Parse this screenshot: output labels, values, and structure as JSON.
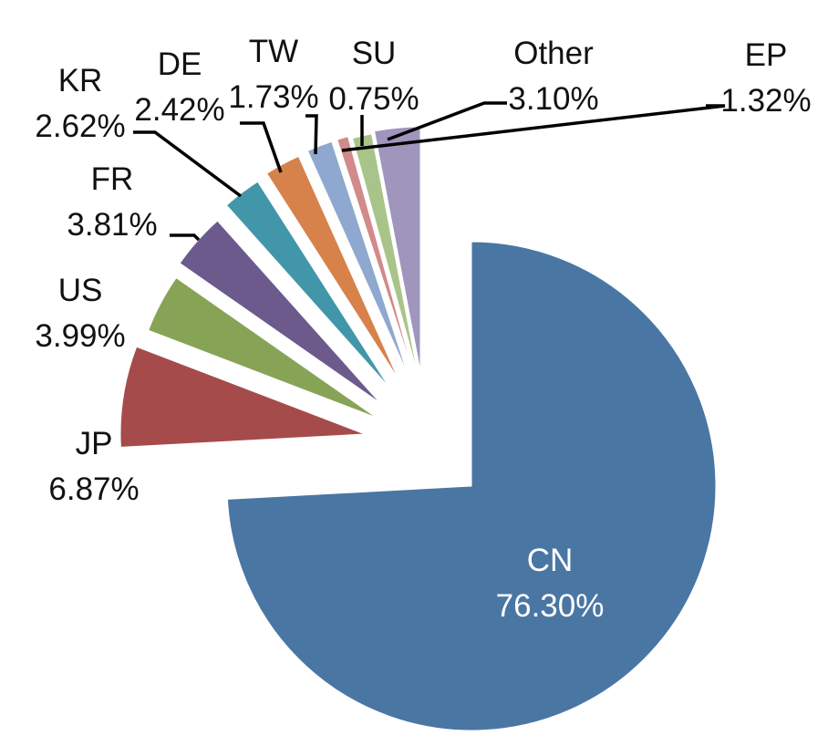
{
  "chart_data": {
    "type": "pie",
    "title": "",
    "exploded": true,
    "start_angle": "12 o'clock",
    "direction": "clockwise",
    "slices": [
      {
        "name": "CN",
        "value": 76.3,
        "label": "76.30%",
        "color": "#4a76a3"
      },
      {
        "name": "JP",
        "value": 6.87,
        "label": "6.87%",
        "color": "#a54b4b"
      },
      {
        "name": "US",
        "value": 3.99,
        "label": "3.99%",
        "color": "#87a456"
      },
      {
        "name": "FR",
        "value": 3.81,
        "label": "3.81%",
        "color": "#6c5a8d"
      },
      {
        "name": "KR",
        "value": 2.62,
        "label": "2.62%",
        "color": "#4197a9"
      },
      {
        "name": "DE",
        "value": 2.42,
        "label": "2.42%",
        "color": "#d6824a"
      },
      {
        "name": "TW",
        "value": 1.73,
        "label": "1.73%",
        "color": "#8ea8cf"
      },
      {
        "name": "SU",
        "value": 0.75,
        "label": "0.75%",
        "color": "#d28a8a"
      },
      {
        "name": "EP",
        "value": 1.32,
        "label": "1.32%",
        "color": "#a9c48a"
      },
      {
        "name": "Other",
        "value": 3.1,
        "label": "3.10%",
        "color": "#9f95bd"
      }
    ]
  }
}
